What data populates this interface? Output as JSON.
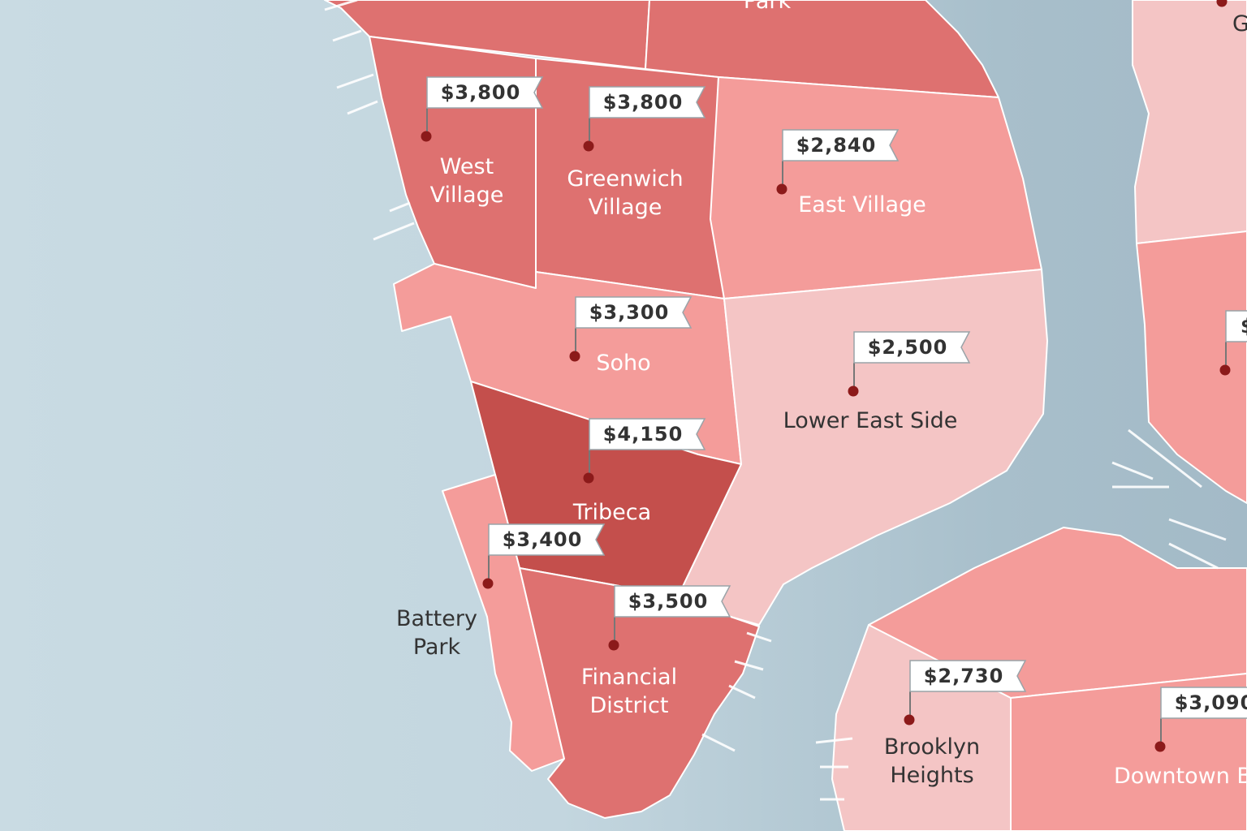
{
  "colors": {
    "water_light": "#c7d9e1",
    "water_dark": "#a7bdca",
    "tier_dark": "#c44f4c",
    "tier_medium": "#de7170",
    "tier_light": "#f49c9a",
    "tier_pale": "#f4c5c5",
    "pin": "#b82a2a",
    "pin_dark": "#8c1a1a"
  },
  "partial_labels": {
    "park": "Park",
    "top_right": "G",
    "right_price": "$"
  },
  "neighborhoods": [
    {
      "id": "west-village",
      "name_lines": [
        "West",
        "Village"
      ],
      "price": "$3,800",
      "tier": "tier_medium",
      "label_color": "#ffffff"
    },
    {
      "id": "greenwich-village",
      "name_lines": [
        "Greenwich",
        "Village"
      ],
      "price": "$3,800",
      "tier": "tier_medium",
      "label_color": "#ffffff"
    },
    {
      "id": "east-village",
      "name_lines": [
        "East Village"
      ],
      "price": "$2,840",
      "tier": "tier_light",
      "label_color": "#ffffff"
    },
    {
      "id": "soho",
      "name_lines": [
        "Soho"
      ],
      "price": "$3,300",
      "tier": "tier_light",
      "label_color": "#ffffff"
    },
    {
      "id": "lower-east-side",
      "name_lines": [
        "Lower East Side"
      ],
      "price": "$2,500",
      "tier": "tier_pale",
      "label_color": "#333333"
    },
    {
      "id": "tribeca",
      "name_lines": [
        "Tribeca"
      ],
      "price": "$4,150",
      "tier": "tier_dark",
      "label_color": "#ffffff"
    },
    {
      "id": "battery-park",
      "name_lines": [
        "Battery",
        "Park"
      ],
      "price": "$3,400",
      "tier": "tier_light",
      "label_color": "#333333"
    },
    {
      "id": "financial-district",
      "name_lines": [
        "Financial",
        "District"
      ],
      "price": "$3,500",
      "tier": "tier_medium",
      "label_color": "#ffffff"
    },
    {
      "id": "brooklyn-heights",
      "name_lines": [
        "Brooklyn",
        "Heights"
      ],
      "price": "$2,730",
      "tier": "tier_pale",
      "label_color": "#333333"
    },
    {
      "id": "downtown-brooklyn",
      "name_lines": [
        "Downtown B"
      ],
      "price": "$3,090",
      "tier": "tier_light",
      "label_color": "#ffffff"
    }
  ]
}
